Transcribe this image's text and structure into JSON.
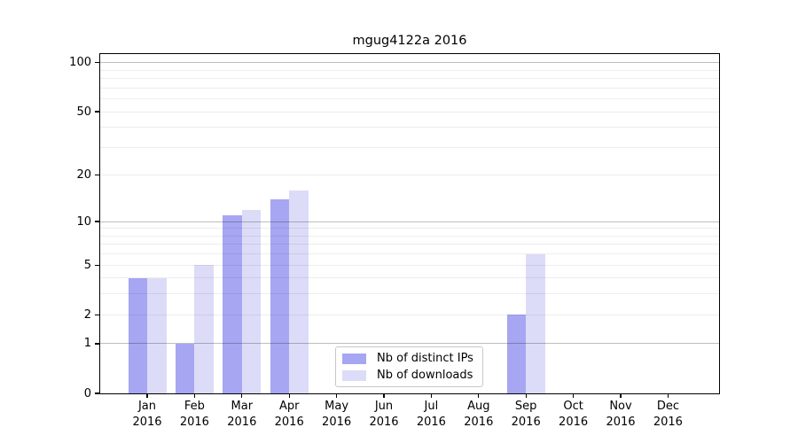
{
  "chart_data": {
    "type": "bar",
    "title": "mgug4122a 2016",
    "categories": [
      "Jan",
      "Feb",
      "Mar",
      "Apr",
      "May",
      "Jun",
      "Jul",
      "Aug",
      "Sep",
      "Oct",
      "Nov",
      "Dec"
    ],
    "year_label": "2016",
    "series": [
      {
        "name": "Nb of distinct IPs",
        "color": "#a6a6f2",
        "values": [
          4,
          1,
          11,
          14,
          0,
          0,
          0,
          0,
          2,
          0,
          0,
          0
        ]
      },
      {
        "name": "Nb of downloads",
        "color": "#dcdcf8",
        "values": [
          4,
          5,
          12,
          16,
          0,
          0,
          0,
          0,
          6,
          0,
          0,
          0
        ]
      }
    ],
    "yscale": "log1p",
    "ylim": [
      0,
      113
    ],
    "yticks": [
      0,
      1,
      2,
      5,
      10,
      20,
      50,
      100
    ],
    "major_gridlines": [
      1,
      10,
      100
    ],
    "minor_gridlines": [
      2,
      3,
      4,
      5,
      6,
      7,
      8,
      9,
      20,
      30,
      40,
      50,
      60,
      70,
      80,
      90
    ],
    "grid": true,
    "xlabel": "",
    "ylabel": "",
    "legend": {
      "position": "lower-center",
      "border_color": "#c8c8c8"
    }
  }
}
